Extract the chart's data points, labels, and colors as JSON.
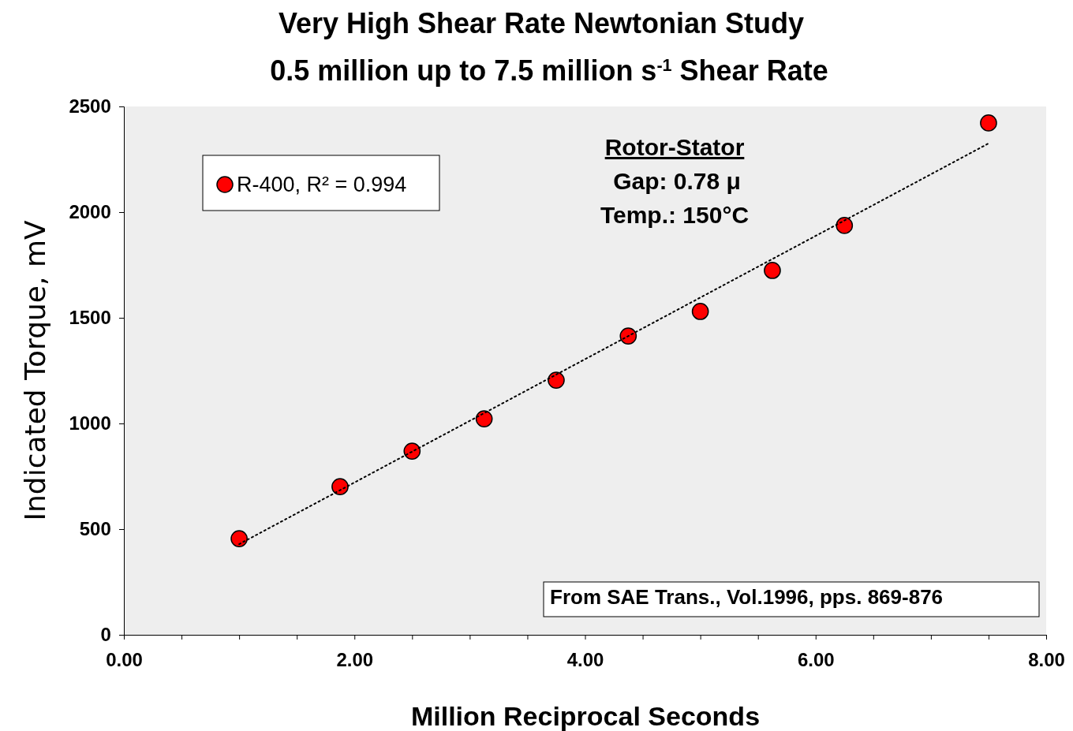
{
  "chart_data": {
    "type": "scatter",
    "title": "Very High Shear Rate Newtonian Study",
    "subtitle": "0.5 million up to 7.5 million s$^{-1}$ Shear Rate",
    "xlabel": "Million Reciprocal Seconds",
    "ylabel": "Indicated Torque, mV",
    "xlim": [
      0,
      8
    ],
    "ylim": [
      0,
      2500
    ],
    "xticks": [
      {
        "value": 0,
        "label": "0.00"
      },
      {
        "value": 0.5,
        "label": null
      },
      {
        "value": 1,
        "label": null
      },
      {
        "value": 1.5,
        "label": null
      },
      {
        "value": 2,
        "label": "2.00"
      },
      {
        "value": 2.5,
        "label": null
      },
      {
        "value": 3,
        "label": null
      },
      {
        "value": 3.5,
        "label": null
      },
      {
        "value": 4,
        "label": "4.00"
      },
      {
        "value": 4.5,
        "label": null
      },
      {
        "value": 5,
        "label": null
      },
      {
        "value": 5.5,
        "label": null
      },
      {
        "value": 6,
        "label": "6.00"
      },
      {
        "value": 6.5,
        "label": null
      },
      {
        "value": 7,
        "label": null
      },
      {
        "value": 7.5,
        "label": null
      },
      {
        "value": 8,
        "label": "8.00"
      }
    ],
    "yticks": [
      0,
      500,
      1000,
      1500,
      2000,
      2500
    ],
    "grid": false,
    "legend": "top left",
    "marker": "circle",
    "series": [
      {
        "name": "R-400, R² = 0.994",
        "color": "#ff0000",
        "x": [
          1.0,
          1.875,
          2.5,
          3.125,
          3.75,
          4.375,
          5.0,
          5.625,
          6.25,
          7.5
        ],
        "values": [
          455,
          701,
          869,
          1022,
          1205,
          1414,
          1530,
          1724,
          1937,
          2422
        ]
      },
      {
        "type": "line",
        "color": "#000000",
        "line_style": "dotted",
        "marker": "none",
        "x": [
          1.0,
          7.5
        ],
        "values": [
          429,
          2325
        ]
      }
    ],
    "annotations": [
      "Rotor-Stator",
      "Gap: 0.78 μ",
      "Temp.: 150°C",
      "From SAE Trans., Vol.1996, pps. 869-876"
    ]
  }
}
